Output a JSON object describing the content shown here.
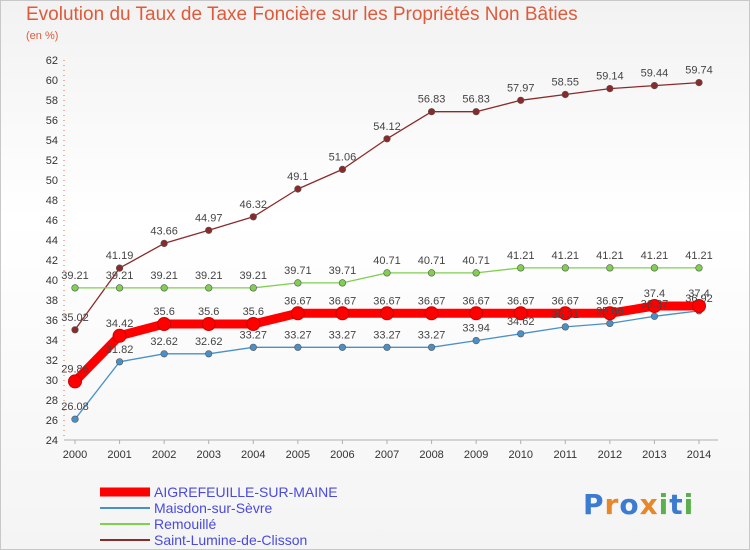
{
  "title": "Evolution du Taux de Taxe Foncière sur les Propriétés Non Bâties",
  "subtitle": "(en %)",
  "brand": "Proxiti",
  "chart_data": {
    "type": "line",
    "x": [
      "2000",
      "2001",
      "2002",
      "2003",
      "2004",
      "2005",
      "2006",
      "2007",
      "2008",
      "2009",
      "2010",
      "2011",
      "2012",
      "2013",
      "2014"
    ],
    "ylim": [
      24,
      62
    ],
    "yticks": [
      24,
      26,
      28,
      30,
      32,
      34,
      36,
      38,
      40,
      42,
      44,
      46,
      48,
      50,
      52,
      54,
      56,
      58,
      60,
      62
    ],
    "grid": false,
    "legend_position": "bottom-left",
    "series": [
      {
        "name": "AIGREFEUILLE-SUR-MAINE",
        "color": "#ff0000",
        "values": [
          29.86,
          34.42,
          35.6,
          35.6,
          35.6,
          36.67,
          36.67,
          36.67,
          36.67,
          36.67,
          36.67,
          36.67,
          36.67,
          37.4,
          37.4
        ],
        "labels": [
          "29.86",
          "34.42",
          "35.6",
          "35.6",
          "35.6",
          "36.67",
          "36.67",
          "36.67",
          "36.67",
          "36.67",
          "36.67",
          "36.67",
          "36.67",
          "37.4",
          "37.4"
        ]
      },
      {
        "name": "Maisdon-sur-Sèvre",
        "color": "#4a90c8",
        "values": [
          26.08,
          31.82,
          32.62,
          32.62,
          33.27,
          33.27,
          33.27,
          33.27,
          33.27,
          33.94,
          34.62,
          35.31,
          35.66,
          36.37,
          36.92
        ],
        "labels": [
          "26.08",
          "31.82",
          "32.62",
          "32.62",
          "33.27",
          "33.27",
          "33.27",
          "33.27",
          "33.27",
          "33.94",
          "34.62",
          "35.31",
          "35.66",
          "36.37",
          "36.92"
        ]
      },
      {
        "name": "Remouillé",
        "color": "#80d050",
        "values": [
          39.21,
          39.21,
          39.21,
          39.21,
          39.21,
          39.71,
          39.71,
          40.71,
          40.71,
          40.71,
          41.21,
          41.21,
          41.21,
          41.21,
          41.21
        ],
        "labels": [
          "39.21",
          "39.21",
          "39.21",
          "39.21",
          "39.21",
          "39.71",
          "39.71",
          "40.71",
          "40.71",
          "40.71",
          "41.21",
          "41.21",
          "41.21",
          "41.21",
          "41.21"
        ]
      },
      {
        "name": "Saint-Lumine-de-Clisson",
        "color": "#8b2a2a",
        "values": [
          35.02,
          41.19,
          43.66,
          44.97,
          46.32,
          49.1,
          51.06,
          54.12,
          56.83,
          56.83,
          57.97,
          58.55,
          59.14,
          59.44,
          59.74
        ],
        "labels": [
          "35.02",
          "41.19",
          "43.66",
          "44.97",
          "46.32",
          "49.1",
          "51.06",
          "54.12",
          "56.83",
          "56.83",
          "57.97",
          "58.55",
          "59.14",
          "59.44",
          "59.74"
        ]
      }
    ]
  }
}
